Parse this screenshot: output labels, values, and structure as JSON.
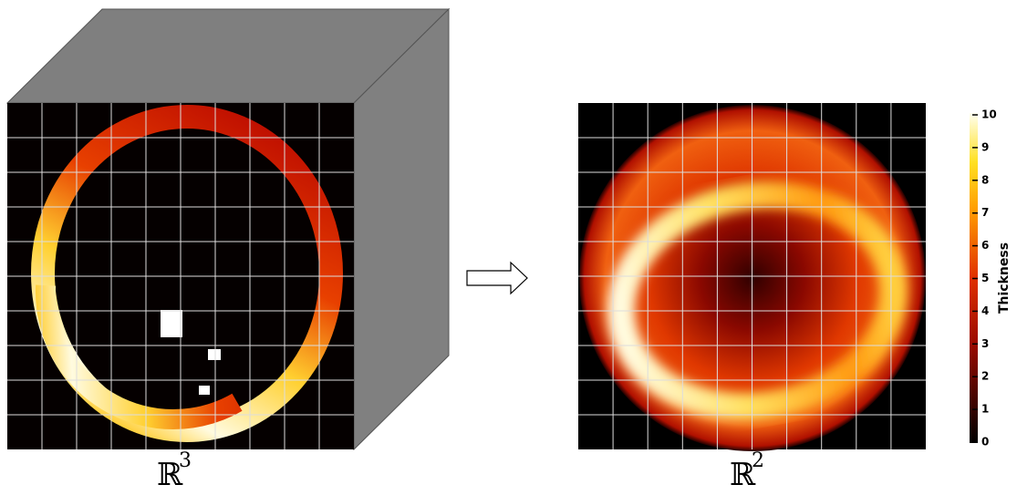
{
  "spaces": [
    {
      "symbol": "ℝ",
      "power": "3"
    },
    {
      "symbol": "ℝ",
      "power": "2"
    }
  ],
  "colorbar": {
    "label": "Thickness",
    "lim": [
      0,
      10
    ],
    "ticks": [
      0,
      1,
      2,
      3,
      4,
      5,
      6,
      7,
      8,
      9,
      10
    ]
  }
}
